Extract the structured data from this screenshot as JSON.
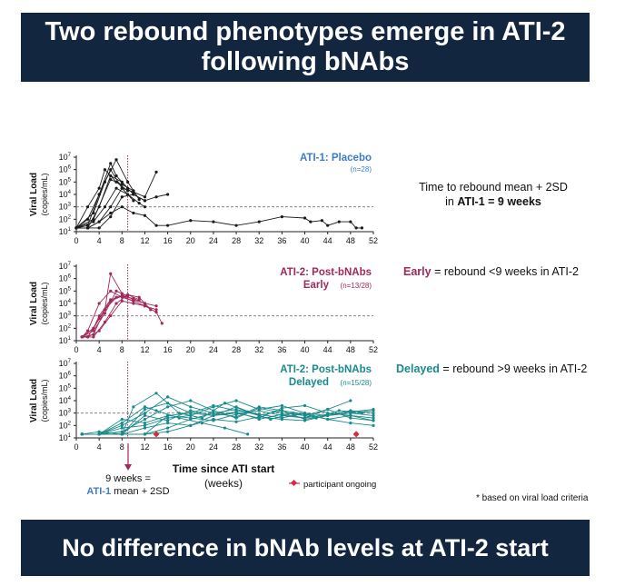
{
  "banners": {
    "top": [
      "Two rebound phenotypes emerge in ATI-2",
      "following bNAbs"
    ],
    "bottom": "No difference in bNAb levels at ATI-2 start"
  },
  "colors": {
    "banner": "#12263f",
    "placebo": "#1a1a1a",
    "early": "#a0285a",
    "delayed": "#1a8a8a",
    "title_blue": "#3d7dc8",
    "marker": "#d62c3c"
  },
  "axis": {
    "ylabel_main": "Viral Load",
    "ylabel_unit": "(copies/mL)",
    "xlabel": "Time since ATI start",
    "xlabel_unit": "(weeks)",
    "x_ticks": [
      "0",
      "4",
      "8",
      "12",
      "16",
      "20",
      "24",
      "28",
      "32",
      "36",
      "40",
      "44",
      "48",
      "52"
    ],
    "y_ticks": [
      {
        "base": "10",
        "exp": "1"
      },
      {
        "base": "10",
        "exp": "2"
      },
      {
        "base": "10",
        "exp": "3"
      },
      {
        "base": "10",
        "exp": "4"
      },
      {
        "base": "10",
        "exp": "5"
      },
      {
        "base": "10",
        "exp": "6"
      },
      {
        "base": "10",
        "exp": "7"
      }
    ]
  },
  "panels": {
    "placebo": {
      "title": "ATI-1: Placebo",
      "n": "(n=28)"
    },
    "early": {
      "title_line1": "ATI-2: Post-bNAbs",
      "title_line2": "Early",
      "n": "(n=13/28)"
    },
    "delayed": {
      "title_line1": "ATI-2: Post-bNAbs",
      "title_line2": "Delayed",
      "n": "(n=15/28)"
    }
  },
  "notes": {
    "rebound_line1": "Time to rebound mean + 2SD",
    "rebound_line2_pre": "in ",
    "rebound_line2_bold": "ATI-1 = 9 weeks",
    "early_bold": "Early",
    "early_rest": " = rebound <9 weeks in ATI-2",
    "delayed_bold": "Delayed",
    "delayed_rest": " = rebound >9 weeks in ATI-2",
    "nine_weeks_line1": "9 weeks =",
    "nine_weeks_blue": "ATI-1",
    "nine_weeks_rest": " mean + 2SD",
    "ongoing": "participant ongoing",
    "footnote": "* based on viral load criteria"
  },
  "chart_data": [
    {
      "type": "line",
      "panel": "placebo",
      "title": "ATI-1: Placebo",
      "ylabel": "Viral Load (copies/mL)",
      "yscale": "log10",
      "xlim": [
        0,
        52
      ],
      "ylim": [
        1,
        7
      ],
      "threshold_log10": 3,
      "reference_week": 9,
      "series": [
        {
          "x": [
            0,
            2,
            4,
            6,
            8,
            10
          ],
          "y": [
            1.3,
            2,
            4,
            6,
            4.5,
            3.5
          ]
        },
        {
          "x": [
            0,
            3,
            5,
            7,
            9,
            11
          ],
          "y": [
            1.3,
            2.5,
            5,
            6.8,
            5,
            3.6
          ]
        },
        {
          "x": [
            0,
            2,
            4,
            6,
            8,
            10,
            12
          ],
          "y": [
            1.3,
            1.3,
            3,
            5.5,
            5,
            4,
            3.5
          ]
        },
        {
          "x": [
            0,
            2,
            4,
            5,
            7,
            9
          ],
          "y": [
            1.3,
            3,
            4.5,
            6,
            5,
            4.3
          ]
        },
        {
          "x": [
            0,
            3,
            5,
            7,
            9,
            11,
            12
          ],
          "y": [
            1.3,
            1.8,
            3,
            4.5,
            4,
            3.3,
            3
          ]
        },
        {
          "x": [
            0,
            2,
            4,
            6,
            8,
            10,
            12,
            14
          ],
          "y": [
            1.3,
            1.3,
            1.8,
            3,
            4.5,
            4.2,
            3.8,
            5.8
          ]
        },
        {
          "x": [
            0,
            2,
            4,
            6,
            8,
            10,
            12,
            14,
            16
          ],
          "y": [
            1.3,
            1.3,
            1.3,
            2.2,
            3.8,
            4,
            3.5,
            3.8,
            4
          ]
        },
        {
          "x": [
            0,
            3,
            6,
            8,
            10
          ],
          "y": [
            1.3,
            2,
            5.2,
            4.8,
            4.3
          ]
        },
        {
          "x": [
            0,
            2,
            4,
            6,
            7,
            9
          ],
          "y": [
            1.3,
            1.5,
            4,
            6.5,
            5.5,
            4.5
          ]
        },
        {
          "x": [
            0,
            2,
            4,
            6,
            8,
            10,
            12,
            14,
            16,
            20,
            24,
            28,
            32,
            36,
            40,
            41,
            43,
            44,
            46,
            48,
            49,
            50
          ],
          "y": [
            1.3,
            1.3,
            1.8,
            2.5,
            3,
            2.5,
            2.3,
            1.5,
            1.5,
            1.9,
            1.8,
            1.5,
            1.8,
            2.2,
            2.1,
            1.8,
            1.9,
            1.5,
            1.8,
            1.8,
            1.3,
            1.3
          ]
        }
      ]
    },
    {
      "type": "line",
      "panel": "early",
      "title": "ATI-2: Post-bNAbs Early",
      "ylabel": "Viral Load (copies/mL)",
      "yscale": "log10",
      "xlim": [
        0,
        52
      ],
      "ylim": [
        1,
        7
      ],
      "threshold_log10": 3,
      "reference_week": 9,
      "series": [
        {
          "x": [
            1,
            3,
            5,
            6,
            8,
            10,
            12
          ],
          "y": [
            1.3,
            2,
            3.5,
            6.4,
            4.8,
            4.3,
            4
          ]
        },
        {
          "x": [
            1,
            2,
            4,
            6,
            8,
            10,
            12,
            14
          ],
          "y": [
            1.3,
            1.3,
            2.8,
            4.2,
            4.6,
            4.4,
            4,
            3.8
          ]
        },
        {
          "x": [
            1,
            3,
            5,
            7,
            9,
            11
          ],
          "y": [
            1.3,
            1.5,
            3.5,
            4.5,
            4.7,
            4.3
          ]
        },
        {
          "x": [
            1,
            2,
            4,
            6,
            8,
            10
          ],
          "y": [
            1.3,
            1.8,
            4,
            5,
            4.5,
            4.2
          ]
        },
        {
          "x": [
            1,
            3,
            5,
            7,
            9,
            11,
            13
          ],
          "y": [
            1.3,
            1.3,
            2.5,
            4,
            4.7,
            4.5,
            3.5
          ]
        },
        {
          "x": [
            1,
            3,
            4,
            6,
            8,
            10,
            12,
            14
          ],
          "y": [
            1.3,
            2,
            3,
            4.3,
            4.6,
            4.2,
            3.8,
            3.5
          ]
        },
        {
          "x": [
            1,
            3,
            5,
            7,
            9
          ],
          "y": [
            1.3,
            1.8,
            3.2,
            5,
            4.6
          ]
        },
        {
          "x": [
            1,
            2,
            4,
            6,
            8,
            10,
            12,
            14,
            15
          ],
          "y": [
            1.3,
            1.3,
            1.8,
            3,
            4.2,
            4,
            3.8,
            3.3,
            2.4
          ]
        }
      ]
    },
    {
      "type": "line",
      "panel": "delayed",
      "title": "ATI-2: Post-bNAbs Delayed",
      "xlabel": "Time since ATI start (weeks)",
      "ylabel": "Viral Load (copies/mL)",
      "yscale": "log10",
      "xlim": [
        0,
        52
      ],
      "ylim": [
        1,
        7
      ],
      "threshold_log10": 3,
      "reference_week": 9,
      "ongoing_markers_x": [
        14,
        49
      ],
      "series": [
        {
          "x": [
            1,
            4,
            8,
            12,
            16,
            20,
            24,
            28,
            32,
            36,
            40,
            44,
            48,
            52
          ],
          "y": [
            1.3,
            1.3,
            2,
            3,
            4.3,
            3.5,
            3,
            3.3,
            2.8,
            3.2,
            2.5,
            2.8,
            3,
            2.8
          ]
        },
        {
          "x": [
            1,
            4,
            8,
            12,
            16,
            20,
            24,
            28,
            32,
            36,
            40,
            44,
            48,
            52
          ],
          "y": [
            1.3,
            1.3,
            1.5,
            2.5,
            3.5,
            4,
            3.2,
            2.6,
            3.4,
            3,
            2.8,
            3.3,
            2.6,
            2.4
          ]
        },
        {
          "x": [
            1,
            4,
            8,
            10,
            14,
            18,
            22,
            26,
            30,
            34,
            38,
            42,
            46,
            50
          ],
          "y": [
            1.3,
            1.3,
            1.3,
            3.5,
            4.6,
            3,
            2.6,
            3.8,
            3.1,
            2.5,
            3,
            2.6,
            3.2,
            3
          ]
        },
        {
          "x": [
            1,
            4,
            8,
            12,
            16,
            20,
            24,
            28,
            32,
            36,
            40,
            44,
            48,
            52
          ],
          "y": [
            1.3,
            1.3,
            1.8,
            2,
            2.6,
            2.8,
            3.5,
            4,
            3.3,
            3.6,
            3,
            2.8,
            3.2,
            3
          ]
        },
        {
          "x": [
            1,
            4,
            8,
            12,
            16,
            20,
            24,
            28,
            32,
            36,
            40,
            44,
            48,
            52
          ],
          "y": [
            1.3,
            1.5,
            1.3,
            1.3,
            1.8,
            2.5,
            3,
            2.7,
            3.5,
            3.2,
            2.9,
            2.5,
            2.8,
            2.6
          ]
        },
        {
          "x": [
            1,
            4,
            8,
            12,
            14,
            18,
            22,
            26,
            30
          ],
          "y": [
            1.3,
            1.3,
            2.2,
            3.5,
            3.2,
            2.6,
            2.2,
            1.8,
            1.3
          ]
        },
        {
          "x": [
            1,
            4,
            8,
            12,
            16,
            20,
            24,
            28,
            32,
            36,
            40,
            44,
            48,
            52
          ],
          "y": [
            1.3,
            1.3,
            1.3,
            2.8,
            2.4,
            3.2,
            2.8,
            3,
            2.6,
            3.4,
            3.6,
            3,
            2.8,
            2.4
          ]
        },
        {
          "x": [
            1,
            4,
            8,
            12,
            16,
            20,
            24,
            28,
            32,
            36,
            40,
            44,
            48,
            52
          ],
          "y": [
            1.3,
            1.3,
            2.5,
            2.2,
            2.8,
            2.6,
            2.4,
            2.9,
            3.2,
            2.8,
            2.6,
            2.9,
            3.1,
            3.3
          ]
        },
        {
          "x": [
            1,
            4,
            8,
            12,
            16,
            20,
            24,
            28,
            32,
            36,
            40,
            44,
            48,
            52
          ],
          "y": [
            1.3,
            1.3,
            1.3,
            1.8,
            2.2,
            2,
            2.5,
            2.3,
            2.7,
            2.5,
            2.4,
            2.8,
            3,
            3.2
          ]
        },
        {
          "x": [
            1,
            4,
            8,
            12,
            16,
            20,
            24,
            28,
            32
          ],
          "y": [
            1.3,
            1.3,
            1.3,
            1.3,
            1.5,
            2,
            2.8,
            3.5,
            2.8
          ]
        },
        {
          "x": [
            1,
            4,
            8,
            12,
            16,
            20,
            24,
            28,
            32,
            36,
            40,
            44,
            48,
            52
          ],
          "y": [
            1.3,
            1.3,
            1.3,
            3.3,
            3.8,
            3,
            3.6,
            3.2,
            2.9,
            2.6,
            3,
            2.5,
            2.2,
            2
          ]
        },
        {
          "x": [
            1,
            4,
            8,
            12,
            16,
            20,
            24,
            28,
            32,
            36,
            40,
            44,
            48
          ],
          "y": [
            1.3,
            1.3,
            1.3,
            1.3,
            2.8,
            3,
            2.8,
            3.1,
            2.5,
            2.9,
            2.6,
            3.3,
            4
          ]
        }
      ]
    }
  ]
}
